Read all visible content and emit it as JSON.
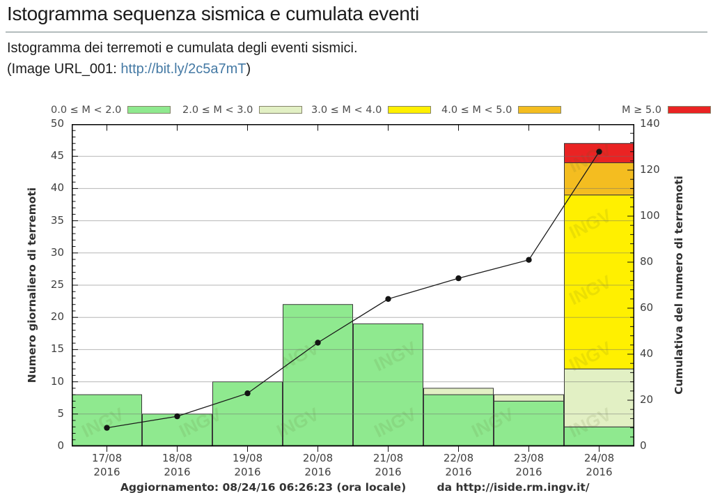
{
  "header": {
    "title": "Istogramma sequenza sismica e cumulata eventi",
    "subtitle": "Istogramma dei terremoti e cumulata degli eventi sismici.",
    "image_ref": {
      "prefix": "(Image URL_001: ",
      "link": "http://bit.ly/2c5a7mT",
      "suffix": ")"
    }
  },
  "chart_data": {
    "type": "bar",
    "subtype": "stacked-bar-with-cumulative-line",
    "categories": [
      "17/08",
      "18/08",
      "19/08",
      "20/08",
      "21/08",
      "22/08",
      "23/08",
      "24/08"
    ],
    "category_year": "2016",
    "series": [
      {
        "name": "0.0 ≤ M < 2.0",
        "color": "#8fe98f",
        "values": [
          8,
          5,
          10,
          22,
          19,
          8,
          7,
          3
        ]
      },
      {
        "name": "2.0 ≤ M < 3.0",
        "color": "#e2f0c4",
        "values": [
          0,
          0,
          0,
          0,
          0,
          1,
          1,
          9
        ]
      },
      {
        "name": "3.0 ≤ M < 4.0",
        "color": "#fff000",
        "values": [
          0,
          0,
          0,
          0,
          0,
          0,
          0,
          27
        ]
      },
      {
        "name": "4.0 ≤ M < 5.0",
        "color": "#f4bd20",
        "values": [
          0,
          0,
          0,
          0,
          0,
          0,
          0,
          5
        ]
      },
      {
        "name": "M ≥ 5.0",
        "color": "#ea2323",
        "values": [
          0,
          0,
          0,
          0,
          0,
          0,
          0,
          3
        ]
      }
    ],
    "line_series": {
      "name": "Cumulata eventi",
      "color": "#1a1a1a",
      "values": [
        8,
        13,
        23,
        45,
        64,
        73,
        81,
        128
      ]
    },
    "daily_totals": [
      8,
      5,
      10,
      22,
      19,
      9,
      8,
      47
    ],
    "ylabel_left": "Numero giornaliero di terremoti",
    "ylabel_right": "Cumulativa del numero di terremoti",
    "ylim_left": [
      0,
      50
    ],
    "ytick_step_left": 5,
    "ylim_right": [
      0,
      140
    ],
    "ytick_step_right": 20,
    "grid": "horizontal",
    "legend_position": "top",
    "watermark": "INGV"
  },
  "footer": {
    "update": "Aggiornamento: 08/24/16 06:26:23 (ora locale)",
    "source": "da http://iside.rm.ingv.it/"
  }
}
